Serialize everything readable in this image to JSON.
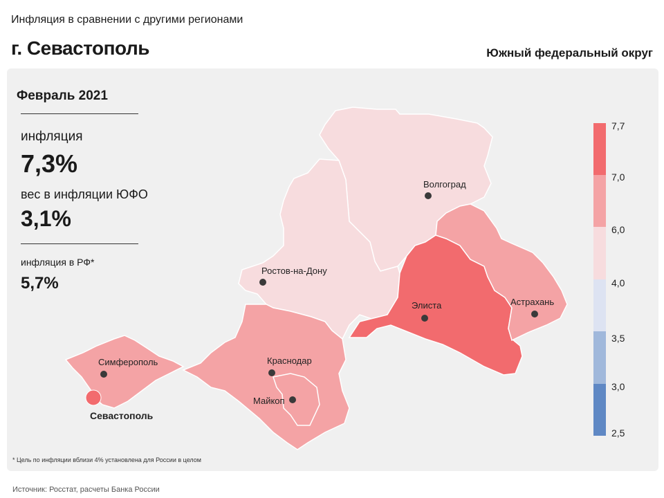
{
  "header": {
    "subtitle": "Инфляция в сравнении с другими регионами",
    "city": "г. Севастополь",
    "district": "Южный федеральный округ"
  },
  "stats": {
    "period": "Февраль 2021",
    "inflation_label": "инфляция",
    "inflation_value": "7,3%",
    "weight_label": "вес в инфляции ЮФО",
    "weight_value": "3,1%",
    "rf_label": "инфляция в РФ*",
    "rf_value": "5,7%"
  },
  "cities": {
    "volgograd": "Волгоград",
    "rostov": "Ростов-на-Дону",
    "elista": "Элиста",
    "astrakhan": "Астрахань",
    "krasnodar": "Краснодар",
    "maykop": "Майкоп",
    "simferopol": "Симферополь",
    "sevastopol": "Севастополь"
  },
  "legend": {
    "thresholds": [
      "7,7",
      "7,0",
      "6,0",
      "4,0",
      "3,5",
      "3,0",
      "2,5"
    ],
    "colors": [
      "#f26b6e",
      "#f4a3a5",
      "#f7dcde",
      "#dde3f2",
      "#a0b8db",
      "#5f88c4"
    ]
  },
  "region_colors": {
    "volgograd": "#f7dcde",
    "rostov": "#f7dcde",
    "kalmykia": "#f26b6e",
    "astrakhan": "#f4a3a5",
    "krasnodar": "#f4a3a5",
    "adygea": "#f4a3a5",
    "crimea": "#f4a3a5",
    "sevastopol": "#f26b6e"
  },
  "footnote": "* Цель по инфляции вблизи 4% установлена для России в целом",
  "source": "Источник: Росстат, расчеты Банка России"
}
